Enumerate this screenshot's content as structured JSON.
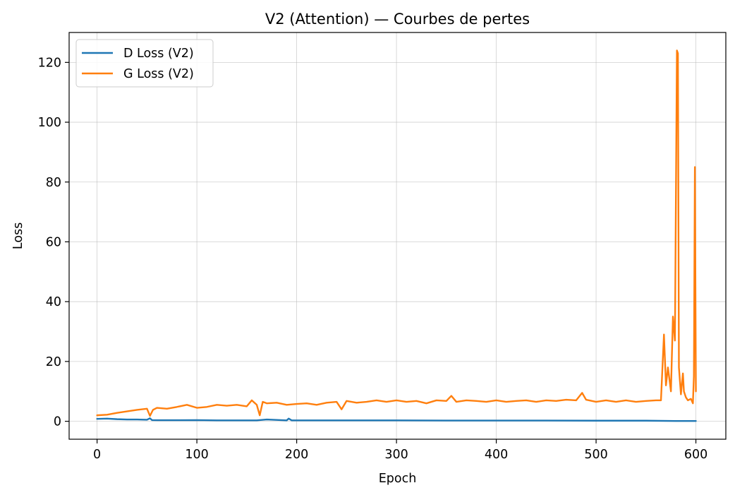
{
  "chart_data": {
    "type": "line",
    "title": "V2 (Attention) — Courbes de pertes",
    "xlabel": "Epoch",
    "ylabel": "Loss",
    "xlim": [
      -28,
      630
    ],
    "ylim": [
      -6,
      130
    ],
    "xticks": [
      0,
      100,
      200,
      300,
      400,
      500,
      600
    ],
    "yticks": [
      0,
      20,
      40,
      60,
      80,
      100,
      120
    ],
    "grid": true,
    "legend_position": "upper-left",
    "series": [
      {
        "name": "D Loss (V2)",
        "color": "#1f77b4",
        "x": [
          0,
          10,
          20,
          30,
          40,
          50,
          53,
          55,
          60,
          80,
          100,
          120,
          140,
          160,
          170,
          190,
          192,
          195,
          220,
          250,
          300,
          350,
          400,
          450,
          500,
          550,
          580,
          590,
          600
        ],
        "y": [
          0.8,
          0.9,
          0.7,
          0.6,
          0.6,
          0.5,
          1.0,
          0.4,
          0.35,
          0.35,
          0.4,
          0.3,
          0.3,
          0.3,
          0.6,
          0.3,
          0.9,
          0.3,
          0.3,
          0.3,
          0.3,
          0.25,
          0.25,
          0.25,
          0.2,
          0.2,
          0.1,
          0.1,
          0.1
        ]
      },
      {
        "name": "G Loss (V2)",
        "color": "#ff7f0e",
        "x": [
          0,
          10,
          20,
          30,
          40,
          50,
          53,
          56,
          60,
          70,
          80,
          90,
          100,
          110,
          120,
          130,
          140,
          150,
          155,
          160,
          163,
          166,
          170,
          180,
          190,
          200,
          210,
          220,
          230,
          240,
          245,
          250,
          260,
          270,
          280,
          290,
          300,
          310,
          320,
          330,
          340,
          350,
          355,
          360,
          370,
          380,
          390,
          400,
          410,
          420,
          430,
          440,
          450,
          460,
          470,
          480,
          486,
          490,
          500,
          510,
          520,
          530,
          540,
          550,
          560,
          565,
          568,
          570,
          572,
          575,
          577,
          579,
          581,
          582,
          583,
          585,
          587,
          588,
          590,
          592,
          595,
          597,
          598,
          599,
          600
        ],
        "y": [
          2.0,
          2.2,
          2.8,
          3.3,
          3.8,
          4.2,
          1.8,
          3.8,
          4.5,
          4.2,
          4.8,
          5.5,
          4.5,
          4.8,
          5.5,
          5.2,
          5.5,
          5.0,
          7.0,
          5.5,
          2.0,
          6.5,
          6.0,
          6.2,
          5.5,
          5.8,
          6.0,
          5.5,
          6.2,
          6.5,
          4.0,
          6.8,
          6.2,
          6.5,
          7.0,
          6.5,
          7.0,
          6.5,
          6.8,
          6.0,
          7.0,
          6.8,
          8.5,
          6.5,
          7.0,
          6.8,
          6.5,
          7.0,
          6.5,
          6.8,
          7.0,
          6.5,
          7.0,
          6.8,
          7.2,
          7.0,
          9.5,
          7.2,
          6.5,
          7.0,
          6.5,
          7.0,
          6.5,
          6.8,
          7.0,
          7.0,
          29.0,
          12.0,
          18.0,
          10.0,
          35.0,
          27.0,
          124.0,
          123.0,
          18.0,
          9.0,
          16.0,
          10.0,
          8.0,
          7.0,
          7.5,
          6.0,
          15.0,
          85.0,
          10.0
        ]
      }
    ]
  }
}
